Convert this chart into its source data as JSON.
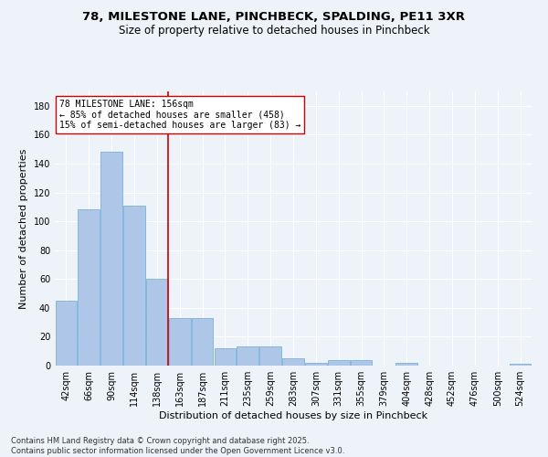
{
  "title": "78, MILESTONE LANE, PINCHBECK, SPALDING, PE11 3XR",
  "subtitle": "Size of property relative to detached houses in Pinchbeck",
  "xlabel": "Distribution of detached houses by size in Pinchbeck",
  "ylabel": "Number of detached properties",
  "categories": [
    "42sqm",
    "66sqm",
    "90sqm",
    "114sqm",
    "138sqm",
    "163sqm",
    "187sqm",
    "211sqm",
    "235sqm",
    "259sqm",
    "283sqm",
    "307sqm",
    "331sqm",
    "355sqm",
    "379sqm",
    "404sqm",
    "428sqm",
    "452sqm",
    "476sqm",
    "500sqm",
    "524sqm"
  ],
  "values": [
    45,
    108,
    148,
    111,
    60,
    33,
    33,
    12,
    13,
    13,
    5,
    2,
    4,
    4,
    0,
    2,
    0,
    0,
    0,
    0,
    1
  ],
  "bar_color": "#aec6e8",
  "bar_edgecolor": "#6aaad4",
  "vline_index": 5,
  "vline_color": "#cc0000",
  "annotation_line1": "78 MILESTONE LANE: 156sqm",
  "annotation_line2": "← 85% of detached houses are smaller (458)",
  "annotation_line3": "15% of semi-detached houses are larger (83) →",
  "annotation_box_color": "#ffffff",
  "annotation_box_edgecolor": "#cc0000",
  "ylim": [
    0,
    190
  ],
  "yticks": [
    0,
    20,
    40,
    60,
    80,
    100,
    120,
    140,
    160,
    180
  ],
  "background_color": "#eef2f9",
  "grid_color": "#ffffff",
  "footer": "Contains HM Land Registry data © Crown copyright and database right 2025.\nContains public sector information licensed under the Open Government Licence v3.0.",
  "title_fontsize": 9.5,
  "subtitle_fontsize": 8.5,
  "axis_label_fontsize": 8,
  "tick_fontsize": 7,
  "annotation_fontsize": 7,
  "footer_fontsize": 6
}
